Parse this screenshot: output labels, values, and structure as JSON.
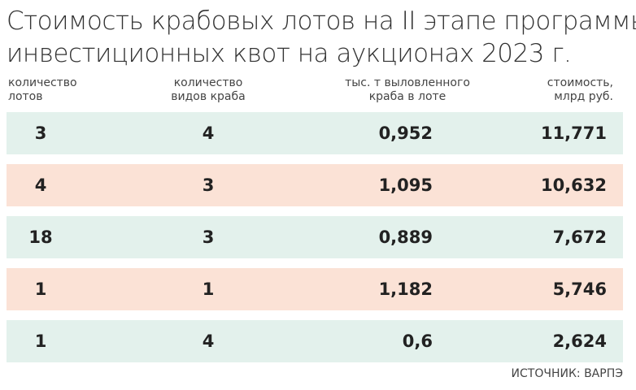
{
  "header": {
    "title": [
      "Стоимость крабовых лотов на II этапе программы",
      "инвестиционных квот на аукционах 2023 г."
    ]
  },
  "table": {
    "columns": [
      "количество лотов",
      "количество видов краба",
      "тыс. т выловленного краба в лоте",
      "стоимость, млрд руб."
    ],
    "rows": [
      [
        "3",
        "4",
        "0,952",
        "11,771"
      ],
      [
        "4",
        "3",
        "1,095",
        "10,632"
      ],
      [
        "18",
        "3",
        "0,889",
        "7,672"
      ],
      [
        "1",
        "1",
        "1,182",
        "5,746"
      ],
      [
        "1",
        "4",
        "0,6",
        "2,624"
      ]
    ]
  },
  "footer": {
    "source": "ИСТОЧНИК: ВАРПЭ"
  }
}
